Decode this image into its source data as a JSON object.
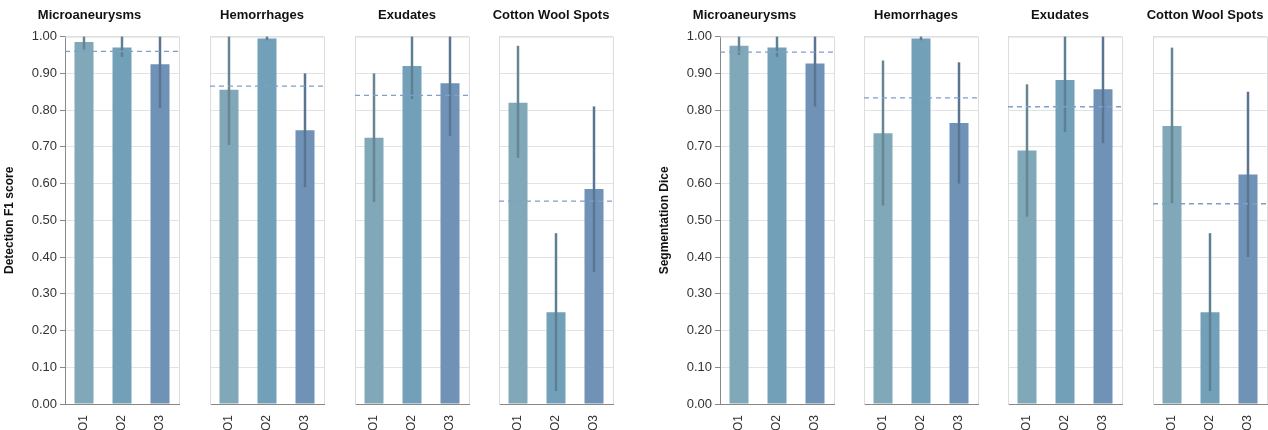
{
  "chart_data": [
    {
      "type": "bar",
      "title": "Microaneurysms",
      "ylabel": "Detection F1 score",
      "categories": [
        "O1",
        "O2",
        "O3"
      ],
      "values": [
        0.985,
        0.97,
        0.925
      ],
      "colors": [
        "#80a8b8",
        "#73a0b9",
        "#6f92b6"
      ],
      "errors": [
        [
          0.965,
          1.0
        ],
        [
          0.945,
          1.0
        ],
        [
          0.805,
          1.0
        ]
      ],
      "ref_lines": [
        {
          "axis": "y",
          "value": 0.96,
          "color": "#7f9fc8",
          "line_style": "dashed"
        }
      ],
      "ylim": [
        0,
        1
      ],
      "yticks": [
        {
          "value": 0,
          "label": "0.00"
        },
        {
          "value": 0.1,
          "label": "0.10"
        },
        {
          "value": 0.2,
          "label": "0.20"
        },
        {
          "value": 0.3,
          "label": "0.30"
        },
        {
          "value": 0.4,
          "label": "0.40"
        },
        {
          "value": 0.5,
          "label": "0.50"
        },
        {
          "value": 0.6,
          "label": "0.60"
        },
        {
          "value": 0.7,
          "label": "0.70"
        },
        {
          "value": 0.8,
          "label": "0.80"
        },
        {
          "value": 0.9,
          "label": "0.90"
        },
        {
          "value": 1,
          "label": "1.00"
        }
      ],
      "grid": "y"
    },
    {
      "type": "bar",
      "title": "Hemorrhages",
      "categories": [
        "O1",
        "O2",
        "O3"
      ],
      "values": [
        0.855,
        0.995,
        0.745
      ],
      "colors": [
        "#80a8b8",
        "#73a0b9",
        "#6f92b6"
      ],
      "errors": [
        [
          0.705,
          1.0
        ],
        [
          0.99,
          1.0
        ],
        [
          0.59,
          0.9
        ]
      ],
      "ref_lines": [
        {
          "axis": "y",
          "value": 0.865,
          "color": "#7f9fc8",
          "line_style": "dashed"
        }
      ],
      "ylim": [
        0,
        1
      ],
      "yticks": [
        {
          "value": 0,
          "label": null
        },
        {
          "value": 0.1,
          "label": null
        },
        {
          "value": 0.2,
          "label": null
        },
        {
          "value": 0.3,
          "label": null
        },
        {
          "value": 0.4,
          "label": null
        },
        {
          "value": 0.5,
          "label": null
        },
        {
          "value": 0.6,
          "label": null
        },
        {
          "value": 0.7,
          "label": null
        },
        {
          "value": 0.8,
          "label": null
        },
        {
          "value": 0.9,
          "label": null
        },
        {
          "value": 1,
          "label": null
        }
      ],
      "grid": "y",
      "tick_labels": "x"
    },
    {
      "type": "bar",
      "title": "Exudates",
      "categories": [
        "O1",
        "O2",
        "O3"
      ],
      "values": [
        0.725,
        0.92,
        0.873
      ],
      "colors": [
        "#80a8b8",
        "#73a0b9",
        "#6f92b6"
      ],
      "errors": [
        [
          0.55,
          0.9
        ],
        [
          0.83,
          1.0
        ],
        [
          0.73,
          1.0
        ]
      ],
      "ref_lines": [
        {
          "axis": "y",
          "value": 0.84,
          "color": "#7f9fc8",
          "line_style": "dashed"
        }
      ],
      "ylim": [
        0,
        1
      ],
      "yticks": [
        {
          "value": 0,
          "label": null
        },
        {
          "value": 0.1,
          "label": null
        },
        {
          "value": 0.2,
          "label": null
        },
        {
          "value": 0.3,
          "label": null
        },
        {
          "value": 0.4,
          "label": null
        },
        {
          "value": 0.5,
          "label": null
        },
        {
          "value": 0.6,
          "label": null
        },
        {
          "value": 0.7,
          "label": null
        },
        {
          "value": 0.8,
          "label": null
        },
        {
          "value": 0.9,
          "label": null
        },
        {
          "value": 1,
          "label": null
        }
      ],
      "grid": "y",
      "tick_labels": "x"
    },
    {
      "type": "bar",
      "title": "Cotton Wool Spots",
      "categories": [
        "O1",
        "O2",
        "O3"
      ],
      "values": [
        0.82,
        0.25,
        0.585
      ],
      "colors": [
        "#80a8b8",
        "#73a0b9",
        "#6f92b6"
      ],
      "errors": [
        [
          0.67,
          0.975
        ],
        [
          0.035,
          0.465
        ],
        [
          0.36,
          0.81
        ]
      ],
      "ref_lines": [
        {
          "axis": "y",
          "value": 0.552,
          "color": "#7f9fc8",
          "line_style": "dashed"
        }
      ],
      "ylim": [
        0,
        1
      ],
      "yticks": [
        {
          "value": 0,
          "label": null
        },
        {
          "value": 0.1,
          "label": null
        },
        {
          "value": 0.2,
          "label": null
        },
        {
          "value": 0.3,
          "label": null
        },
        {
          "value": 0.4,
          "label": null
        },
        {
          "value": 0.5,
          "label": null
        },
        {
          "value": 0.6,
          "label": null
        },
        {
          "value": 0.7,
          "label": null
        },
        {
          "value": 0.8,
          "label": null
        },
        {
          "value": 0.9,
          "label": null
        },
        {
          "value": 1,
          "label": null
        }
      ],
      "grid": "y",
      "tick_labels": "x"
    },
    {
      "type": "bar",
      "title": "Microaneurysms",
      "ylabel": "Segmentation Dice",
      "categories": [
        "O1",
        "O2",
        "O3"
      ],
      "values": [
        0.975,
        0.97,
        0.927
      ],
      "colors": [
        "#80a8b8",
        "#73a0b9",
        "#6f92b6"
      ],
      "errors": [
        [
          0.95,
          1.0
        ],
        [
          0.945,
          1.0
        ],
        [
          0.81,
          1.0
        ]
      ],
      "ref_lines": [
        {
          "axis": "y",
          "value": 0.958,
          "color": "#7f9fc8",
          "line_style": "dashed"
        }
      ],
      "ylim": [
        0,
        1
      ],
      "yticks": [
        {
          "value": 0,
          "label": "0.00"
        },
        {
          "value": 0.1,
          "label": "0.10"
        },
        {
          "value": 0.2,
          "label": "0.20"
        },
        {
          "value": 0.3,
          "label": "0.30"
        },
        {
          "value": 0.4,
          "label": "0.40"
        },
        {
          "value": 0.5,
          "label": "0.50"
        },
        {
          "value": 0.6,
          "label": "0.60"
        },
        {
          "value": 0.7,
          "label": "0.70"
        },
        {
          "value": 0.8,
          "label": "0.80"
        },
        {
          "value": 0.9,
          "label": "0.90"
        },
        {
          "value": 1,
          "label": "1.00"
        }
      ],
      "grid": "y"
    },
    {
      "type": "bar",
      "title": "Hemorrhages",
      "categories": [
        "O1",
        "O2",
        "O3"
      ],
      "values": [
        0.737,
        0.995,
        0.765
      ],
      "colors": [
        "#80a8b8",
        "#73a0b9",
        "#6f92b6"
      ],
      "errors": [
        [
          0.54,
          0.935
        ],
        [
          0.99,
          1.0
        ],
        [
          0.6,
          0.93
        ]
      ],
      "ref_lines": [
        {
          "axis": "y",
          "value": 0.833,
          "color": "#7f9fc8",
          "line_style": "dashed"
        }
      ],
      "ylim": [
        0,
        1
      ],
      "yticks": [
        {
          "value": 0,
          "label": null
        },
        {
          "value": 0.1,
          "label": null
        },
        {
          "value": 0.2,
          "label": null
        },
        {
          "value": 0.3,
          "label": null
        },
        {
          "value": 0.4,
          "label": null
        },
        {
          "value": 0.5,
          "label": null
        },
        {
          "value": 0.6,
          "label": null
        },
        {
          "value": 0.7,
          "label": null
        },
        {
          "value": 0.8,
          "label": null
        },
        {
          "value": 0.9,
          "label": null
        },
        {
          "value": 1,
          "label": null
        }
      ],
      "grid": "y",
      "tick_labels": "x"
    },
    {
      "type": "bar",
      "title": "Exudates",
      "categories": [
        "O1",
        "O2",
        "O3"
      ],
      "values": [
        0.69,
        0.882,
        0.857
      ],
      "colors": [
        "#80a8b8",
        "#73a0b9",
        "#6f92b6"
      ],
      "errors": [
        [
          0.51,
          0.87
        ],
        [
          0.74,
          1.0
        ],
        [
          0.71,
          1.0
        ]
      ],
      "ref_lines": [
        {
          "axis": "y",
          "value": 0.809,
          "color": "#7f9fc8",
          "line_style": "dashed"
        }
      ],
      "ylim": [
        0,
        1
      ],
      "yticks": [
        {
          "value": 0,
          "label": null
        },
        {
          "value": 0.1,
          "label": null
        },
        {
          "value": 0.2,
          "label": null
        },
        {
          "value": 0.3,
          "label": null
        },
        {
          "value": 0.4,
          "label": null
        },
        {
          "value": 0.5,
          "label": null
        },
        {
          "value": 0.6,
          "label": null
        },
        {
          "value": 0.7,
          "label": null
        },
        {
          "value": 0.8,
          "label": null
        },
        {
          "value": 0.9,
          "label": null
        },
        {
          "value": 1,
          "label": null
        }
      ],
      "grid": "y",
      "tick_labels": "x"
    },
    {
      "type": "bar",
      "title": "Cotton Wool Spots",
      "categories": [
        "O1",
        "O2",
        "O3"
      ],
      "values": [
        0.757,
        0.25,
        0.625
      ],
      "colors": [
        "#80a8b8",
        "#73a0b9",
        "#6f92b6"
      ],
      "errors": [
        [
          0.545,
          0.97
        ],
        [
          0.035,
          0.465
        ],
        [
          0.4,
          0.85
        ]
      ],
      "ref_lines": [
        {
          "axis": "y",
          "value": 0.545,
          "color": "#7f9fc8",
          "line_style": "dashed"
        }
      ],
      "ylim": [
        0,
        1
      ],
      "yticks": [
        {
          "value": 0,
          "label": null
        },
        {
          "value": 0.1,
          "label": null
        },
        {
          "value": 0.2,
          "label": null
        },
        {
          "value": 0.3,
          "label": null
        },
        {
          "value": 0.4,
          "label": null
        },
        {
          "value": 0.5,
          "label": null
        },
        {
          "value": 0.6,
          "label": null
        },
        {
          "value": 0.7,
          "label": null
        },
        {
          "value": 0.8,
          "label": null
        },
        {
          "value": 0.9,
          "label": null
        },
        {
          "value": 1,
          "label": null
        }
      ],
      "grid": "y",
      "tick_labels": "x"
    }
  ]
}
